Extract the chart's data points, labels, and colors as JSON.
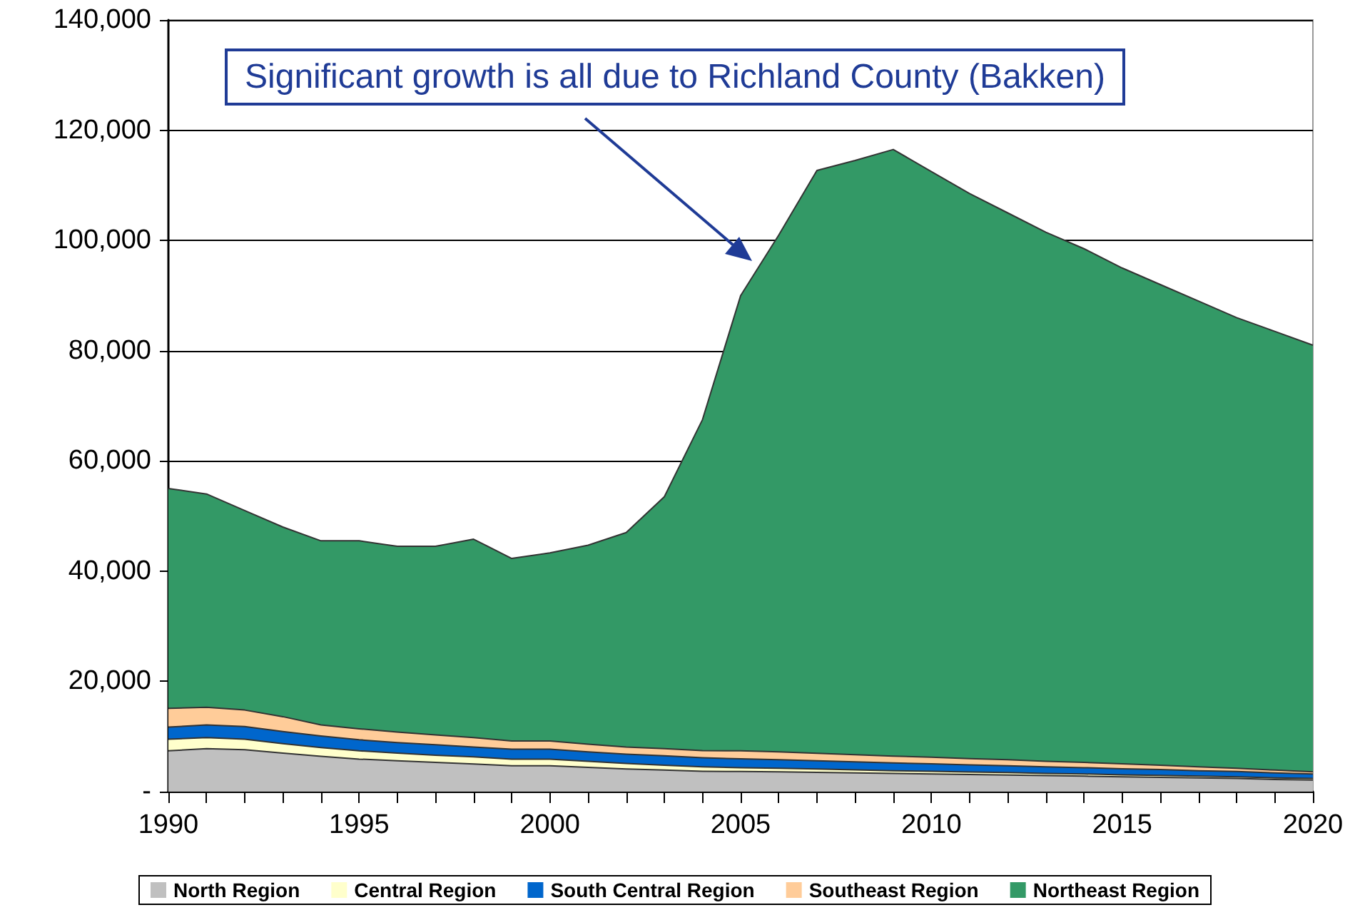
{
  "chart_data": {
    "type": "area",
    "stacked": true,
    "x": [
      1990,
      1991,
      1992,
      1993,
      1994,
      1995,
      1996,
      1997,
      1998,
      1999,
      2000,
      2001,
      2002,
      2003,
      2004,
      2005,
      2006,
      2007,
      2008,
      2009,
      2010,
      2011,
      2012,
      2013,
      2014,
      2015,
      2016,
      2017,
      2018,
      2019,
      2020
    ],
    "series": [
      {
        "name": "North Region",
        "color": "#c0c0c0",
        "values": [
          7400,
          7800,
          7600,
          7000,
          6400,
          5900,
          5600,
          5300,
          5000,
          4700,
          4700,
          4400,
          4100,
          3900,
          3700,
          3650,
          3600,
          3500,
          3400,
          3300,
          3200,
          3100,
          3000,
          2900,
          2800,
          2700,
          2600,
          2500,
          2400,
          2200,
          2100
        ]
      },
      {
        "name": "Central Region",
        "color": "#ffffcc",
        "values": [
          2100,
          2000,
          1900,
          1700,
          1600,
          1500,
          1400,
          1300,
          1300,
          1200,
          1200,
          1100,
          1000,
          900,
          800,
          700,
          650,
          600,
          550,
          500,
          500,
          450,
          450,
          400,
          400,
          350,
          350,
          300,
          300,
          300,
          300
        ]
      },
      {
        "name": "South Central Region",
        "color": "#0066cc",
        "values": [
          2200,
          2300,
          2300,
          2200,
          2100,
          2000,
          1900,
          1900,
          1800,
          1800,
          1800,
          1700,
          1700,
          1700,
          1650,
          1600,
          1550,
          1500,
          1450,
          1400,
          1350,
          1300,
          1250,
          1200,
          1150,
          1100,
          1050,
          1000,
          950,
          900,
          800
        ]
      },
      {
        "name": "Southeast Region",
        "color": "#ffcc99",
        "values": [
          3400,
          3200,
          3000,
          2700,
          2000,
          2000,
          1900,
          1800,
          1700,
          1500,
          1500,
          1400,
          1300,
          1300,
          1300,
          1450,
          1400,
          1350,
          1300,
          1250,
          1200,
          1150,
          1100,
          1000,
          950,
          900,
          800,
          700,
          600,
          500,
          400
        ]
      },
      {
        "name": "Northeast Region",
        "color": "#339966",
        "values": [
          39900,
          38700,
          36200,
          34400,
          33400,
          34100,
          33700,
          34200,
          36000,
          33100,
          34100,
          36100,
          38900,
          45700,
          60050,
          82600,
          93800,
          105750,
          107800,
          110050,
          106250,
          102500,
          99200,
          96000,
          93200,
          89950,
          87200,
          84500,
          81750,
          79600,
          77400
        ]
      }
    ],
    "xlim": [
      1990,
      2020
    ],
    "xticks": [
      1990,
      {
        "value": 1991,
        "label": null
      },
      {
        "value": 1992,
        "label": null
      },
      {
        "value": 1993,
        "label": null
      },
      {
        "value": 1994,
        "label": null
      },
      1995,
      {
        "value": 1996,
        "label": null
      },
      {
        "value": 1997,
        "label": null
      },
      {
        "value": 1998,
        "label": null
      },
      {
        "value": 1999,
        "label": null
      },
      2000,
      {
        "value": 2001,
        "label": null
      },
      {
        "value": 2002,
        "label": null
      },
      {
        "value": 2003,
        "label": null
      },
      {
        "value": 2004,
        "label": null
      },
      2005,
      {
        "value": 2006,
        "label": null
      },
      {
        "value": 2007,
        "label": null
      },
      {
        "value": 2008,
        "label": null
      },
      {
        "value": 2009,
        "label": null
      },
      2010,
      {
        "value": 2011,
        "label": null
      },
      {
        "value": 2012,
        "label": null
      },
      {
        "value": 2013,
        "label": null
      },
      {
        "value": 2014,
        "label": null
      },
      2015,
      {
        "value": 2016,
        "label": null
      },
      {
        "value": 2017,
        "label": null
      },
      {
        "value": 2018,
        "label": null
      },
      {
        "value": 2019,
        "label": null
      },
      2020
    ],
    "ylim": [
      0,
      140000
    ],
    "yticks": [
      {
        "value": 0,
        "label": "-"
      },
      {
        "value": 20000,
        "label": "20,000"
      },
      {
        "value": 40000,
        "label": "40,000"
      },
      {
        "value": 60000,
        "label": "60,000"
      },
      {
        "value": 80000,
        "label": "80,000"
      },
      {
        "value": 100000,
        "label": "100,000"
      },
      {
        "value": 120000,
        "label": "120,000"
      },
      {
        "value": 140000,
        "label": "140,000"
      }
    ],
    "grid": "y",
    "legend": "bottom",
    "annotations": [
      "Significant growth is all due to Richland County (Bakken)"
    ]
  }
}
